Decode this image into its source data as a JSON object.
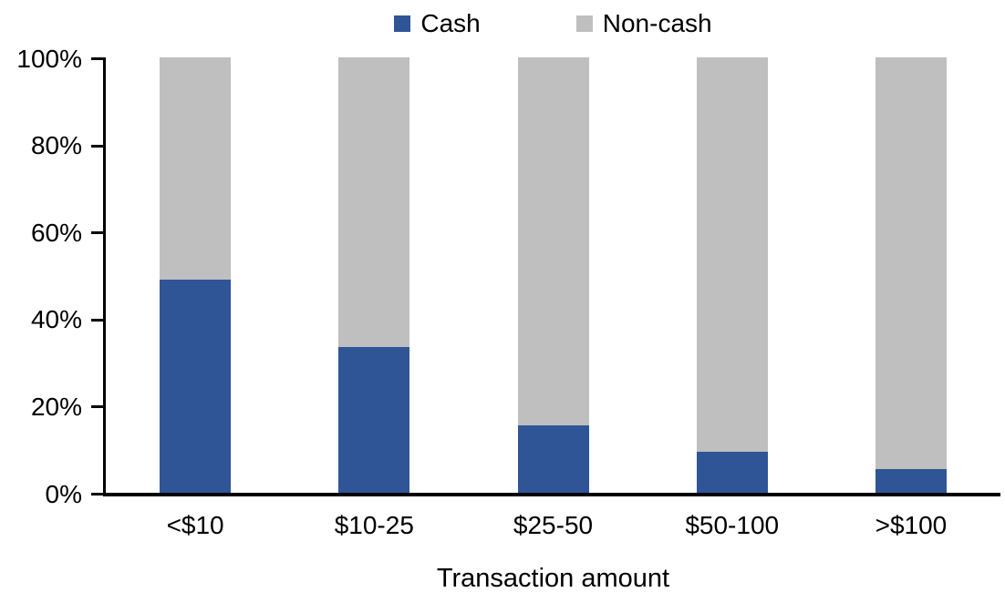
{
  "chart_data": {
    "type": "bar",
    "variant": "stacked-100",
    "title": "",
    "xlabel": "Transaction amount",
    "ylabel": "",
    "categories": [
      "<$10",
      "$10-25",
      "$25-50",
      "$50-100",
      ">$100"
    ],
    "series": [
      {
        "name": "Cash",
        "color": "#2F5597",
        "values": [
          49,
          33.5,
          15.5,
          9.5,
          5.5
        ]
      },
      {
        "name": "Non-cash",
        "color": "#BFBFBF",
        "values": [
          51,
          66.5,
          84.5,
          90.5,
          94.5
        ]
      }
    ],
    "ylim": [
      0,
      100
    ],
    "yticks": [
      0,
      20,
      40,
      60,
      80,
      100
    ],
    "ytick_labels": [
      "0%",
      "20%",
      "40%",
      "60%",
      "80%",
      "100%"
    ],
    "grid": false,
    "legend_position": "top-center",
    "axis_color": "#000000",
    "text_color": "#000000"
  }
}
